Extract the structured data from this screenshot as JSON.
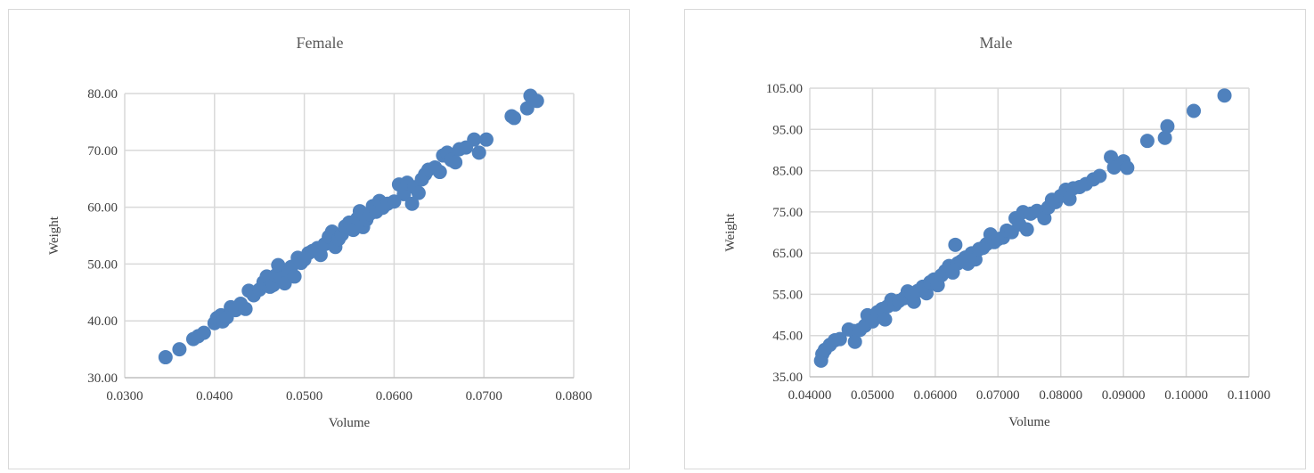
{
  "chart_data": [
    {
      "type": "scatter",
      "title": "Female",
      "xlabel": "Volume",
      "ylabel": "Weight",
      "xlim": [
        0.03,
        0.085
      ],
      "ylim": [
        30,
        80
      ],
      "x_ticks": [
        "0.0300",
        "0.0400",
        "0.0500",
        "0.0600",
        "0.0700",
        "0.0800"
      ],
      "y_ticks": [
        "30.00",
        "40.00",
        "50.00",
        "60.00",
        "70.00",
        "80.00"
      ],
      "grid": true,
      "marker_color": "#4f81bd",
      "points": [
        [
          0.035,
          33.6
        ],
        [
          0.0367,
          35.0
        ],
        [
          0.0384,
          36.8
        ],
        [
          0.039,
          37.3
        ],
        [
          0.0397,
          37.9
        ],
        [
          0.041,
          39.6
        ],
        [
          0.0413,
          40.5
        ],
        [
          0.0418,
          41.0
        ],
        [
          0.042,
          39.9
        ],
        [
          0.0425,
          40.6
        ],
        [
          0.043,
          42.4
        ],
        [
          0.0436,
          41.9
        ],
        [
          0.0442,
          43.0
        ],
        [
          0.0448,
          42.1
        ],
        [
          0.0452,
          45.3
        ],
        [
          0.0458,
          44.5
        ],
        [
          0.0465,
          45.5
        ],
        [
          0.047,
          46.8
        ],
        [
          0.0474,
          47.8
        ],
        [
          0.0478,
          46.0
        ],
        [
          0.0482,
          46.3
        ],
        [
          0.0485,
          48.0
        ],
        [
          0.0488,
          49.8
        ],
        [
          0.0492,
          47.5
        ],
        [
          0.0496,
          46.6
        ],
        [
          0.05,
          48.9
        ],
        [
          0.0504,
          49.5
        ],
        [
          0.0508,
          47.8
        ],
        [
          0.0512,
          51.1
        ],
        [
          0.0516,
          50.2
        ],
        [
          0.052,
          50.8
        ],
        [
          0.0525,
          51.9
        ],
        [
          0.053,
          52.3
        ],
        [
          0.0536,
          52.8
        ],
        [
          0.054,
          51.6
        ],
        [
          0.0545,
          53.5
        ],
        [
          0.055,
          54.8
        ],
        [
          0.0554,
          55.7
        ],
        [
          0.0558,
          53.0
        ],
        [
          0.0562,
          54.4
        ],
        [
          0.0566,
          55.2
        ],
        [
          0.057,
          56.6
        ],
        [
          0.0575,
          57.3
        ],
        [
          0.058,
          56.0
        ],
        [
          0.0585,
          58.0
        ],
        [
          0.0588,
          59.3
        ],
        [
          0.0592,
          56.5
        ],
        [
          0.0596,
          57.8
        ],
        [
          0.06,
          58.8
        ],
        [
          0.0604,
          60.2
        ],
        [
          0.0608,
          59.2
        ],
        [
          0.0612,
          61.1
        ],
        [
          0.0616,
          59.9
        ],
        [
          0.0622,
          60.6
        ],
        [
          0.063,
          61.0
        ],
        [
          0.0636,
          64.0
        ],
        [
          0.0642,
          62.3
        ],
        [
          0.0646,
          64.3
        ],
        [
          0.0652,
          60.6
        ],
        [
          0.0655,
          63.5
        ],
        [
          0.066,
          62.5
        ],
        [
          0.0664,
          64.9
        ],
        [
          0.0668,
          65.8
        ],
        [
          0.0672,
          66.6
        ],
        [
          0.068,
          67.0
        ],
        [
          0.0686,
          66.2
        ],
        [
          0.069,
          69.1
        ],
        [
          0.0695,
          69.6
        ],
        [
          0.07,
          68.3
        ],
        [
          0.0705,
          67.9
        ],
        [
          0.071,
          70.2
        ],
        [
          0.0718,
          70.5
        ],
        [
          0.0728,
          71.9
        ],
        [
          0.0734,
          69.6
        ],
        [
          0.0743,
          71.9
        ],
        [
          0.0774,
          76.0
        ],
        [
          0.0777,
          75.7
        ],
        [
          0.0793,
          77.4
        ],
        [
          0.0797,
          79.6
        ],
        [
          0.0805,
          78.7
        ]
      ]
    },
    {
      "type": "scatter",
      "title": "Male",
      "xlabel": "Volume",
      "ylabel": "Weight",
      "xlim": [
        0.04,
        0.11
      ],
      "ylim": [
        35,
        110
      ],
      "x_ticks": [
        "0.04000",
        "0.05000",
        "0.06000",
        "0.07000",
        "0.08000",
        "0.09000",
        "0.10000",
        "0.11000"
      ],
      "y_ticks": [
        "35.00",
        "45.00",
        "55.00",
        "65.00",
        "75.00",
        "85.00",
        "95.00",
        "105.00"
      ],
      "grid": true,
      "marker_color": "#4f81bd",
      "points": [
        [
          0.0418,
          39.2
        ],
        [
          0.042,
          40.9
        ],
        [
          0.0424,
          42.0
        ],
        [
          0.0432,
          43.3
        ],
        [
          0.044,
          44.5
        ],
        [
          0.0448,
          44.8
        ],
        [
          0.0462,
          47.3
        ],
        [
          0.047,
          46.9
        ],
        [
          0.0472,
          44.1
        ],
        [
          0.048,
          47.2
        ],
        [
          0.0488,
          48.3
        ],
        [
          0.0492,
          51.0
        ],
        [
          0.05,
          49.4
        ],
        [
          0.0508,
          51.8
        ],
        [
          0.0515,
          52.6
        ],
        [
          0.052,
          49.9
        ],
        [
          0.0524,
          53.3
        ],
        [
          0.053,
          55.0
        ],
        [
          0.0536,
          53.8
        ],
        [
          0.0542,
          54.7
        ],
        [
          0.055,
          55.4
        ],
        [
          0.0556,
          57.2
        ],
        [
          0.0562,
          56.6
        ],
        [
          0.0566,
          54.5
        ],
        [
          0.0572,
          57.3
        ],
        [
          0.058,
          58.4
        ],
        [
          0.0586,
          56.7
        ],
        [
          0.0592,
          59.6
        ],
        [
          0.0598,
          60.3
        ],
        [
          0.0604,
          58.8
        ],
        [
          0.061,
          61.4
        ],
        [
          0.0616,
          62.5
        ],
        [
          0.0622,
          63.8
        ],
        [
          0.0628,
          62.1
        ],
        [
          0.0632,
          69.3
        ],
        [
          0.0636,
          64.5
        ],
        [
          0.0642,
          65.1
        ],
        [
          0.0648,
          66.0
        ],
        [
          0.0652,
          64.4
        ],
        [
          0.0658,
          67.1
        ],
        [
          0.0664,
          65.5
        ],
        [
          0.067,
          68.2
        ],
        [
          0.0676,
          68.5
        ],
        [
          0.0682,
          69.5
        ],
        [
          0.0688,
          72.0
        ],
        [
          0.0694,
          70.0
        ],
        [
          0.07,
          70.8
        ],
        [
          0.0708,
          71.2
        ],
        [
          0.0714,
          73.0
        ],
        [
          0.0722,
          72.6
        ],
        [
          0.0728,
          76.2
        ],
        [
          0.0734,
          74.6
        ],
        [
          0.074,
          77.8
        ],
        [
          0.0746,
          73.3
        ],
        [
          0.0752,
          77.4
        ],
        [
          0.0762,
          78.1
        ],
        [
          0.0774,
          76.2
        ],
        [
          0.078,
          79.0
        ],
        [
          0.0786,
          81.0
        ],
        [
          0.0792,
          80.4
        ],
        [
          0.08,
          82.0
        ],
        [
          0.0808,
          83.6
        ],
        [
          0.0814,
          81.2
        ],
        [
          0.082,
          84.0
        ],
        [
          0.083,
          84.3
        ],
        [
          0.084,
          85.1
        ],
        [
          0.0852,
          86.3
        ],
        [
          0.0862,
          87.2
        ],
        [
          0.088,
          92.1
        ],
        [
          0.0885,
          89.4
        ],
        [
          0.09,
          91.0
        ],
        [
          0.0906,
          89.3
        ],
        [
          0.0938,
          96.3
        ],
        [
          0.0966,
          97.1
        ],
        [
          0.097,
          100.1
        ],
        [
          0.1012,
          104.1
        ],
        [
          0.1061,
          108.1
        ]
      ]
    }
  ]
}
